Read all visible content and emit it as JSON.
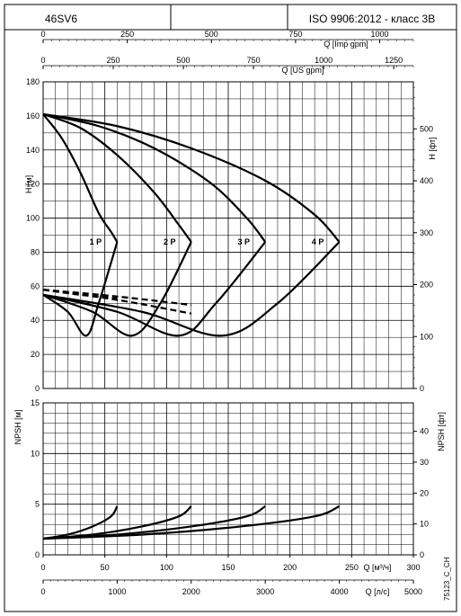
{
  "header": {
    "model": "46SV6",
    "middle": "",
    "standard": "ISO 9906:2012 - класс 3B"
  },
  "code": "75123_C_CH",
  "chart_data": [
    {
      "type": "line",
      "title": "",
      "xlabel": "Q [m³/h]",
      "ylabel": "H [м]",
      "y2label": "H [фт]",
      "xlim": [
        0,
        300
      ],
      "ylim": [
        0,
        180
      ],
      "top_axes": [
        {
          "label": "Q [Imp gpm]",
          "ticks": [
            0,
            250,
            500,
            750,
            1000
          ],
          "max": 1100
        },
        {
          "label": "Q [US gpm]",
          "ticks": [
            0,
            250,
            500,
            750,
            1000,
            1250
          ],
          "max": 1320
        }
      ],
      "y_ticks": [
        0,
        20,
        40,
        60,
        80,
        100,
        120,
        140,
        160,
        180
      ],
      "y2_ticks": [
        0,
        100,
        200,
        300,
        400,
        500
      ],
      "grid": true,
      "series": [
        {
          "name": "1 P",
          "type": "head",
          "x": [
            0,
            15,
            30,
            45,
            55,
            60
          ],
          "y": [
            161,
            147,
            127,
            103,
            92,
            86
          ]
        },
        {
          "name": "2 P",
          "type": "head",
          "x": [
            0,
            30,
            60,
            90,
            110,
            120
          ],
          "y": [
            161,
            153,
            137,
            115,
            96,
            86
          ]
        },
        {
          "name": "3 P",
          "type": "head",
          "x": [
            0,
            45,
            90,
            135,
            165,
            180
          ],
          "y": [
            161,
            154,
            141,
            121,
            100,
            86
          ]
        },
        {
          "name": "4 P",
          "type": "head",
          "x": [
            0,
            60,
            120,
            180,
            220,
            240
          ],
          "y": [
            161,
            154,
            141,
            122,
            102,
            86
          ]
        },
        {
          "name": "1 P",
          "type": "efficiency",
          "x": [
            0,
            20,
            35,
            45,
            60
          ],
          "y": [
            55,
            45,
            31,
            50,
            86
          ]
        },
        {
          "name": "2 P",
          "type": "efficiency",
          "x": [
            0,
            40,
            72,
            95,
            120
          ],
          "y": [
            55,
            45,
            31,
            50,
            86
          ]
        },
        {
          "name": "3 P",
          "type": "efficiency",
          "x": [
            0,
            60,
            110,
            140,
            180
          ],
          "y": [
            55,
            45,
            31,
            50,
            86
          ]
        },
        {
          "name": "4 P",
          "type": "efficiency",
          "x": [
            0,
            80,
            145,
            190,
            240
          ],
          "y": [
            55,
            45,
            31,
            50,
            86
          ]
        },
        {
          "name": "1 P",
          "type": "power",
          "style": "dashed",
          "x": [
            0,
            30,
            60
          ],
          "y": [
            58,
            55,
            53
          ]
        },
        {
          "name": "2 P",
          "type": "power",
          "style": "dashed",
          "x": [
            0,
            60,
            120
          ],
          "y": [
            58,
            54,
            49
          ]
        },
        {
          "name": "3 P",
          "type": "power",
          "style": "dashed",
          "x": [
            0,
            60,
            120
          ],
          "y": [
            58,
            52,
            44
          ]
        }
      ]
    },
    {
      "type": "line",
      "title": "",
      "xlabel": "Q [м³/ч]",
      "x2label": "Q [л/с]",
      "ylabel": "NPSH [м]",
      "y2label": "NPSH [фт]",
      "xlim": [
        0,
        300
      ],
      "ylim": [
        0,
        15
      ],
      "x_ticks": [
        0,
        50,
        100,
        150,
        200,
        250,
        300
      ],
      "x2_ticks": [
        0,
        1000,
        2000,
        3000,
        4000,
        5000
      ],
      "y_ticks": [
        0,
        5,
        10,
        15
      ],
      "y2_ticks": [
        0,
        10,
        20,
        30,
        40
      ],
      "grid": true,
      "series": [
        {
          "name": "1 P",
          "x": [
            0,
            20,
            40,
            55,
            60
          ],
          "y": [
            1.6,
            2.0,
            2.8,
            3.8,
            4.8
          ]
        },
        {
          "name": "2 P",
          "x": [
            0,
            40,
            80,
            110,
            120
          ],
          "y": [
            1.6,
            2.0,
            2.8,
            3.8,
            4.8
          ]
        },
        {
          "name": "3 P",
          "x": [
            0,
            60,
            120,
            165,
            180
          ],
          "y": [
            1.6,
            2.0,
            2.8,
            3.8,
            4.8
          ]
        },
        {
          "name": "4 P",
          "x": [
            0,
            80,
            160,
            220,
            240
          ],
          "y": [
            1.6,
            2.0,
            2.8,
            3.8,
            4.8
          ]
        }
      ]
    }
  ]
}
